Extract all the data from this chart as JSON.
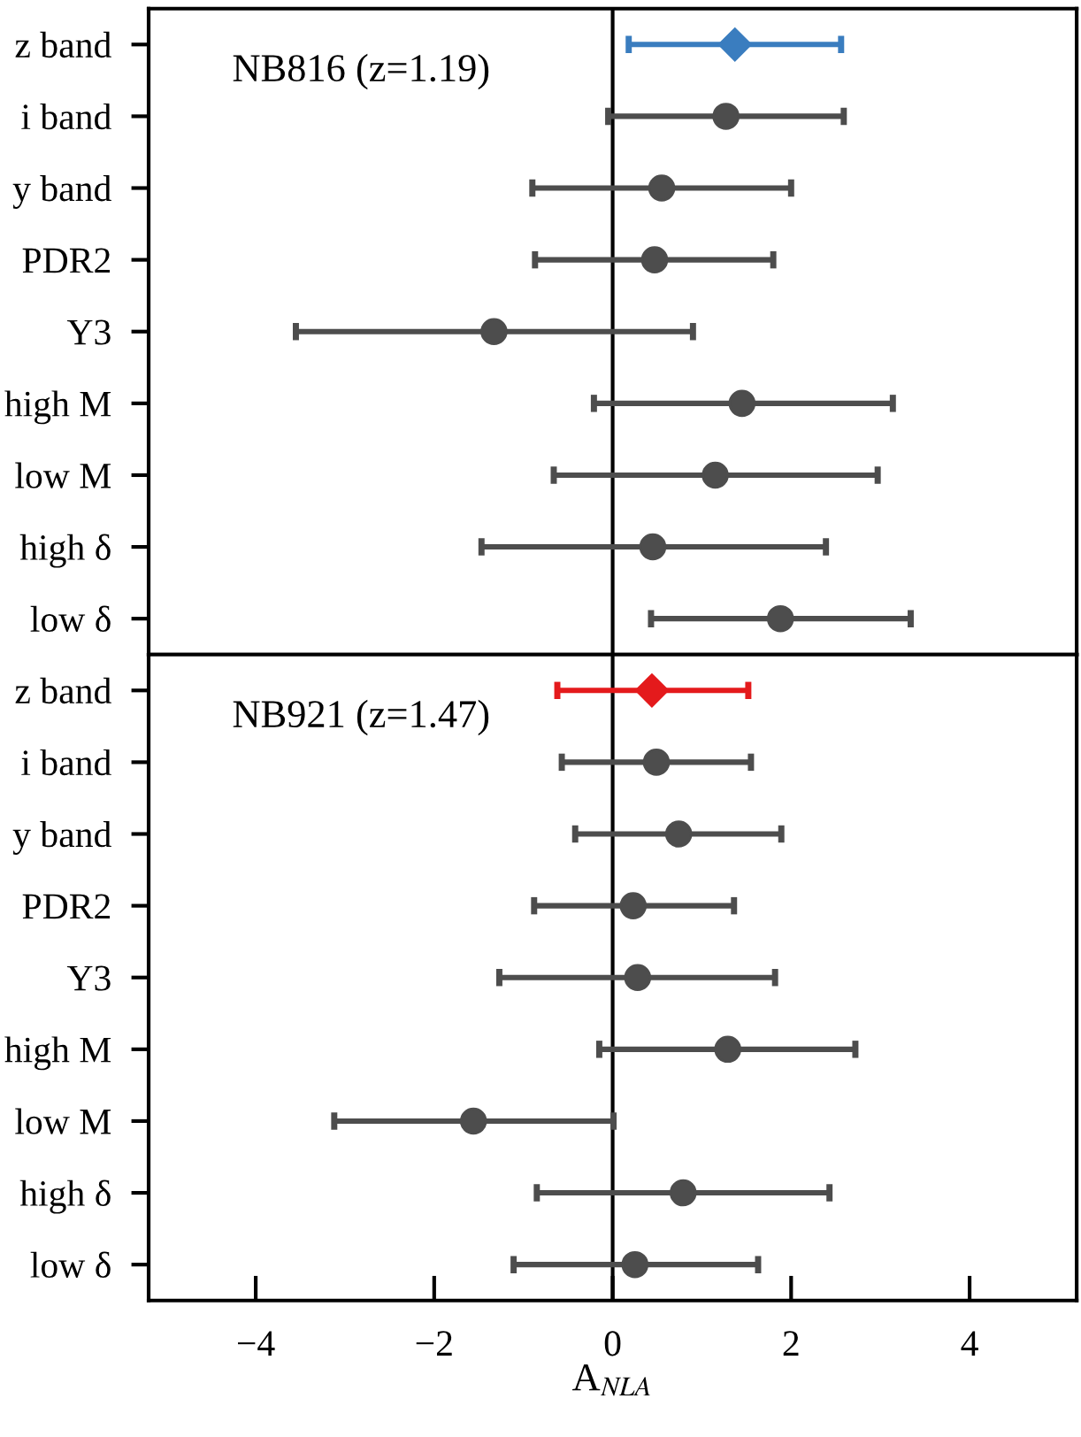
{
  "chart_data": [
    {
      "type": "scatter",
      "orientation": "horizontal",
      "categories": [
        "z band",
        "i band",
        "y band",
        "PDR2",
        "Y3",
        "high M",
        "low M",
        "high δ",
        "low δ"
      ],
      "xlim": [
        -5.2,
        5.2
      ],
      "tick_labels": "y",
      "annotations": [
        "NB816 (z=1.19)"
      ],
      "ref_lines": [
        {
          "axis": "x",
          "value": 0,
          "color": "#000000"
        }
      ],
      "grid": false,
      "legend": false,
      "series": [
        {
          "color": "#3a7dbf",
          "marker": "diamond",
          "values": [
            1.37,
            null,
            null,
            null,
            null,
            null,
            null,
            null,
            null
          ],
          "errors": [
            [
              0.18,
              2.56
            ],
            null,
            null,
            null,
            null,
            null,
            null,
            null,
            null
          ]
        },
        {
          "color": "#4d4d4d",
          "marker": "circle",
          "values": [
            null,
            1.27,
            0.55,
            0.47,
            -1.33,
            1.45,
            1.15,
            0.45,
            1.88
          ],
          "errors": [
            null,
            [
              -0.05,
              2.59
            ],
            [
              -0.9,
              2.0
            ],
            [
              -0.87,
              1.8
            ],
            [
              -3.55,
              0.9
            ],
            [
              -0.21,
              3.14
            ],
            [
              -0.66,
              2.97
            ],
            [
              -1.47,
              2.39
            ],
            [
              0.43,
              3.34
            ]
          ]
        }
      ]
    },
    {
      "type": "scatter",
      "orientation": "horizontal",
      "categories": [
        "z band",
        "i band",
        "y band",
        "PDR2",
        "Y3",
        "high M",
        "low M",
        "high δ",
        "low δ"
      ],
      "xlim": [
        -5.2,
        5.2
      ],
      "xticks": [
        {
          "value": -4,
          "label": "−4"
        },
        {
          "value": -2,
          "label": "−2"
        },
        0,
        2,
        4
      ],
      "xlabel": "A$_{NLA}$",
      "annotations": [
        "NB921 (z=1.47)"
      ],
      "ref_lines": [
        {
          "axis": "x",
          "value": 0,
          "color": "#000000"
        }
      ],
      "grid": false,
      "legend": false,
      "series": [
        {
          "color": "#e41a1c",
          "marker": "diamond",
          "values": [
            0.44,
            null,
            null,
            null,
            null,
            null,
            null,
            null,
            null
          ],
          "errors": [
            [
              -0.62,
              1.52
            ],
            null,
            null,
            null,
            null,
            null,
            null,
            null,
            null
          ]
        },
        {
          "color": "#4d4d4d",
          "marker": "circle",
          "values": [
            null,
            0.49,
            0.74,
            0.23,
            0.28,
            1.29,
            -1.56,
            0.79,
            0.25
          ],
          "errors": [
            null,
            [
              -0.57,
              1.55
            ],
            [
              -0.42,
              1.89
            ],
            [
              -0.88,
              1.36
            ],
            [
              -1.27,
              1.82
            ],
            [
              -0.15,
              2.72
            ],
            [
              -3.12,
              0.01
            ],
            [
              -0.85,
              2.43
            ],
            [
              -1.11,
              1.63
            ]
          ]
        }
      ]
    }
  ]
}
